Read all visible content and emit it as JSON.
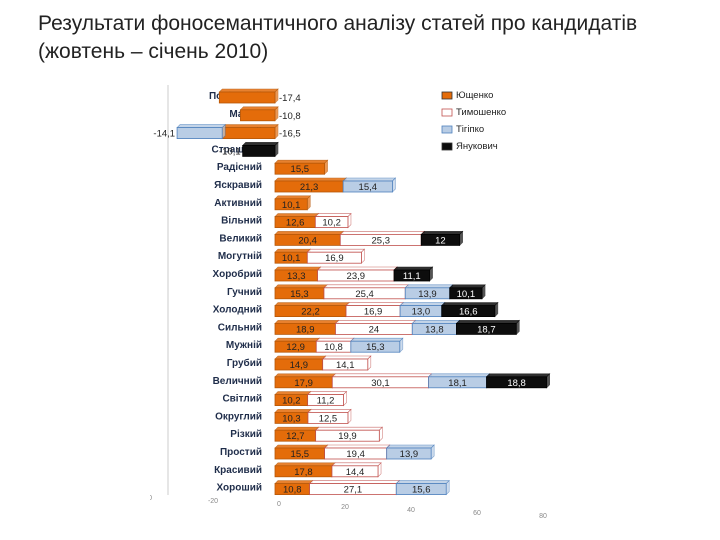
{
  "title": {
    "line1": "Результати фоносемантичного аналізу статей про кандидатів",
    "line2": "(жовтень – січень 2010)"
  },
  "chart_data": {
    "type": "bar",
    "orientation": "horizontal",
    "title": "",
    "xlabel": "",
    "ylabel": "",
    "xlim": [
      -40,
      110
    ],
    "grid": false,
    "legend_position": "top-right",
    "categories": [
      "Повільний",
      "Малий",
      "Злий",
      "Страшний",
      "Радісний",
      "Яскравий",
      "Активний",
      "Вільний",
      "Великий",
      "Могутній",
      "Хоробрий",
      "Гучний",
      "Холодний",
      "Сильний",
      "Мужній",
      "Грубий",
      "Величний",
      "Світлий",
      "Округлий",
      "Різкий",
      "Простий",
      "Красивий",
      "Хороший"
    ],
    "series": [
      {
        "name": "Ющенко",
        "color": "#e46c0a",
        "values": [
          -17.4,
          -10.8,
          -16.5,
          null,
          15.5,
          21.3,
          10.1,
          12.6,
          20.4,
          10.1,
          13.3,
          15.3,
          22.2,
          18.9,
          12.9,
          14.9,
          17.9,
          10.2,
          10.3,
          12.7,
          15.5,
          17.8,
          10.8
        ]
      },
      {
        "name": "Тимошенко",
        "color": "#ffffff",
        "values": [
          null,
          null,
          null,
          null,
          null,
          null,
          null,
          10.2,
          25.3,
          16.9,
          23.9,
          25.4,
          16.9,
          24,
          10.8,
          14.1,
          30.1,
          11.2,
          12.5,
          19.9,
          19.4,
          14.4,
          27.1
        ]
      },
      {
        "name": "Тігіпко",
        "color": "#b9cde5",
        "values": [
          null,
          null,
          -14.1,
          null,
          null,
          15.4,
          null,
          null,
          null,
          null,
          null,
          13.9,
          13.0,
          13.8,
          15.3,
          null,
          18.1,
          null,
          null,
          null,
          13.9,
          null,
          15.6
        ]
      },
      {
        "name": "Янукович",
        "color": "#0d0d0d",
        "values": [
          null,
          null,
          null,
          -10.1,
          null,
          null,
          null,
          null,
          12,
          null,
          11.1,
          10.1,
          16.6,
          18.7,
          null,
          null,
          18.8,
          null,
          null,
          null,
          null,
          null,
          null
        ]
      }
    ],
    "value_labels": [
      [
        [
          "-17,4"
        ],
        null,
        null,
        null
      ],
      [
        [
          "-10,8"
        ],
        null,
        null,
        null
      ],
      [
        [
          "-16,5"
        ],
        null,
        [
          "-14,1"
        ],
        null
      ],
      [
        null,
        null,
        null,
        [
          "-10,1"
        ]
      ],
      [
        [
          "15,5"
        ],
        null,
        null,
        null
      ],
      [
        [
          "21,3"
        ],
        null,
        [
          "15,4"
        ],
        null
      ],
      [
        [
          "10,1"
        ],
        null,
        null,
        null
      ],
      [
        [
          "12,6"
        ],
        [
          "10,2"
        ],
        null,
        null
      ],
      [
        [
          "20,4"
        ],
        [
          "25,3"
        ],
        null,
        [
          "12"
        ]
      ],
      [
        [
          "10,1"
        ],
        [
          "16,9"
        ],
        null,
        null
      ],
      [
        [
          "13,3"
        ],
        [
          "23,9"
        ],
        null,
        [
          "11,1"
        ]
      ],
      [
        [
          "15,3"
        ],
        [
          "25,4"
        ],
        [
          "13,9"
        ],
        [
          "10,1"
        ]
      ],
      [
        [
          "22,2"
        ],
        [
          "16,9"
        ],
        [
          "13,0"
        ],
        [
          "16,6"
        ]
      ],
      [
        [
          "18,9"
        ],
        [
          "24"
        ],
        [
          "13,8"
        ],
        [
          "18,7"
        ]
      ],
      [
        [
          "12,9"
        ],
        [
          "10,8"
        ],
        [
          "15,3"
        ],
        null
      ],
      [
        [
          "14,9"
        ],
        [
          "14,1"
        ],
        null,
        null
      ],
      [
        [
          "17,9"
        ],
        [
          "30,1"
        ],
        [
          "18,1"
        ],
        [
          "18,8"
        ]
      ],
      [
        [
          "10,2"
        ],
        [
          "11,2"
        ],
        null,
        null
      ],
      [
        [
          "10,3"
        ],
        [
          "12,5"
        ],
        null,
        null
      ],
      [
        [
          "12,7"
        ],
        [
          "19,9"
        ],
        null,
        null
      ],
      [
        [
          "15,5"
        ],
        [
          "19,4"
        ],
        [
          "13,9"
        ],
        null
      ],
      [
        [
          "17,8"
        ],
        [
          "14,4"
        ],
        null,
        null
      ],
      [
        [
          "10,8"
        ],
        [
          "27,1"
        ],
        [
          "15,6"
        ],
        null
      ]
    ],
    "x_ticks": [
      "-40",
      "-20",
      "0",
      "20",
      "40",
      "60",
      "80",
      "100"
    ]
  }
}
